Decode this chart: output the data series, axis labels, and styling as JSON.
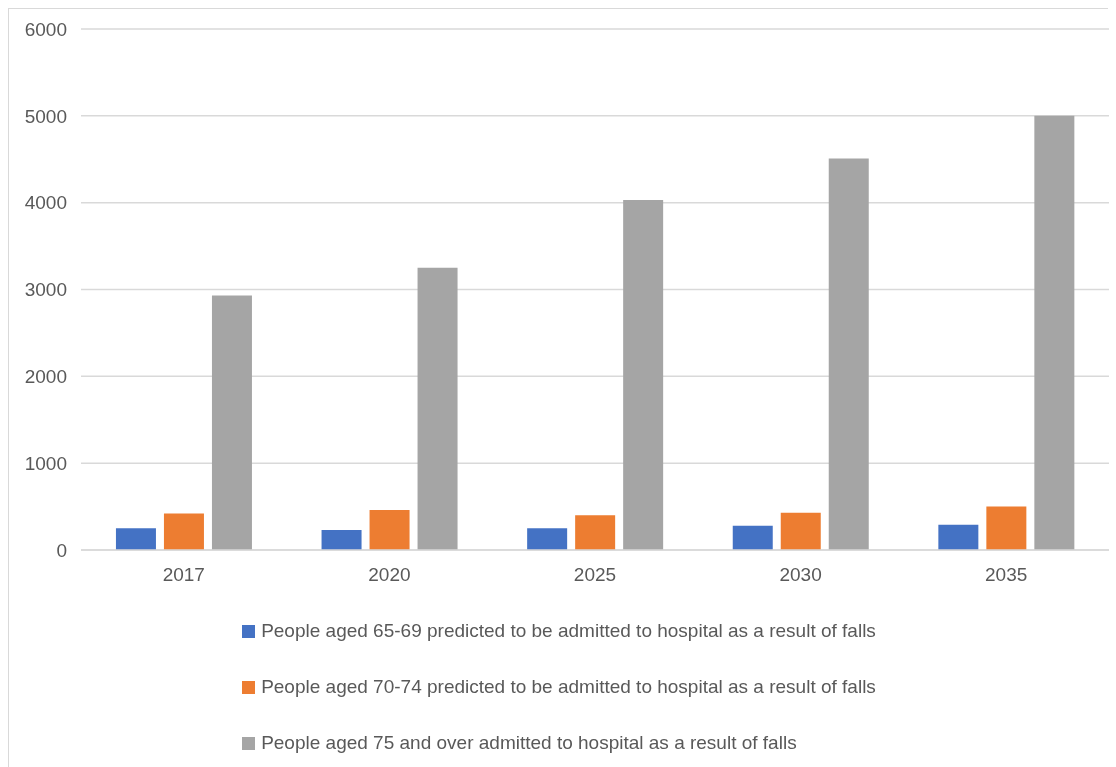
{
  "chart_data": {
    "type": "bar",
    "categories": [
      "2017",
      "2020",
      "2025",
      "2030",
      "2035"
    ],
    "series": [
      {
        "name": "People aged 65-69 predicted to be admitted to hospital as a result of falls",
        "color": "#4472c4",
        "values": [
          250,
          230,
          250,
          280,
          290
        ]
      },
      {
        "name": "People aged 70-74 predicted to be admitted to hospital as a result of falls",
        "color": "#ed7d31",
        "values": [
          420,
          460,
          400,
          430,
          500
        ]
      },
      {
        "name": "People aged 75 and over admitted to hospital as a result of falls",
        "color": "#a5a5a5",
        "values": [
          2930,
          3250,
          4030,
          4510,
          5000
        ]
      }
    ],
    "ylim": [
      0,
      6000
    ],
    "yticks": [
      0,
      1000,
      2000,
      3000,
      4000,
      5000,
      6000
    ],
    "grid": "y",
    "legend": "bottom"
  }
}
